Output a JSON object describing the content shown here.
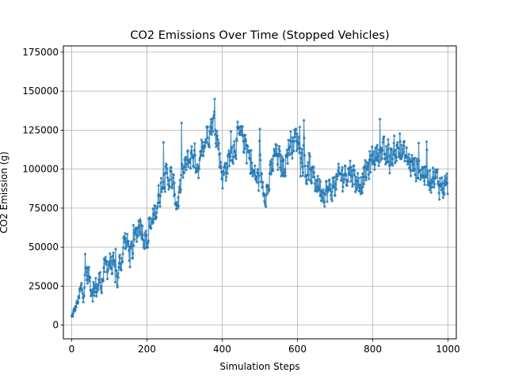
{
  "chart_data": {
    "type": "line",
    "title": "CO2 Emissions Over Time (Stopped Vehicles)",
    "xlabel": "Simulation Steps",
    "ylabel": "CO2 Emission (g)",
    "xlim": [
      -22,
      1022
    ],
    "ylim": [
      -8800,
      179000
    ],
    "xticks": [
      0,
      200,
      400,
      600,
      800,
      1000
    ],
    "xtick_labels": [
      "0",
      "200",
      "400",
      "600",
      "800",
      "1000"
    ],
    "yticks": [
      0,
      25000,
      50000,
      75000,
      100000,
      125000,
      150000,
      175000
    ],
    "ytick_labels": [
      "0",
      "25000",
      "50000",
      "75000",
      "100000",
      "125000",
      "150000",
      "175000"
    ],
    "grid": true,
    "legend": "none",
    "line_color": "#1f77b4",
    "n_points": 1000,
    "series": [
      {
        "x_step": 20,
        "x_start": 0,
        "values": [
          5000,
          18000,
          33000,
          22000,
          30000,
          42000,
          28000,
          55000,
          45000,
          68000,
          52000,
          72000,
          92000,
          96000,
          78000,
          100000,
          110000,
          101000,
          125000,
          132000,
          95000,
          108000,
          120000,
          118000,
          97000,
          92000,
          86000,
          110000,
          101000,
          117000,
          120000,
          98000,
          95000,
          89000,
          85000,
          90000,
          97000,
          100000,
          91000,
          96000,
          108000,
          112000,
          104000,
          113000,
          110000,
          103000,
          100000,
          97000,
          95000,
          90000
        ]
      }
    ]
  }
}
